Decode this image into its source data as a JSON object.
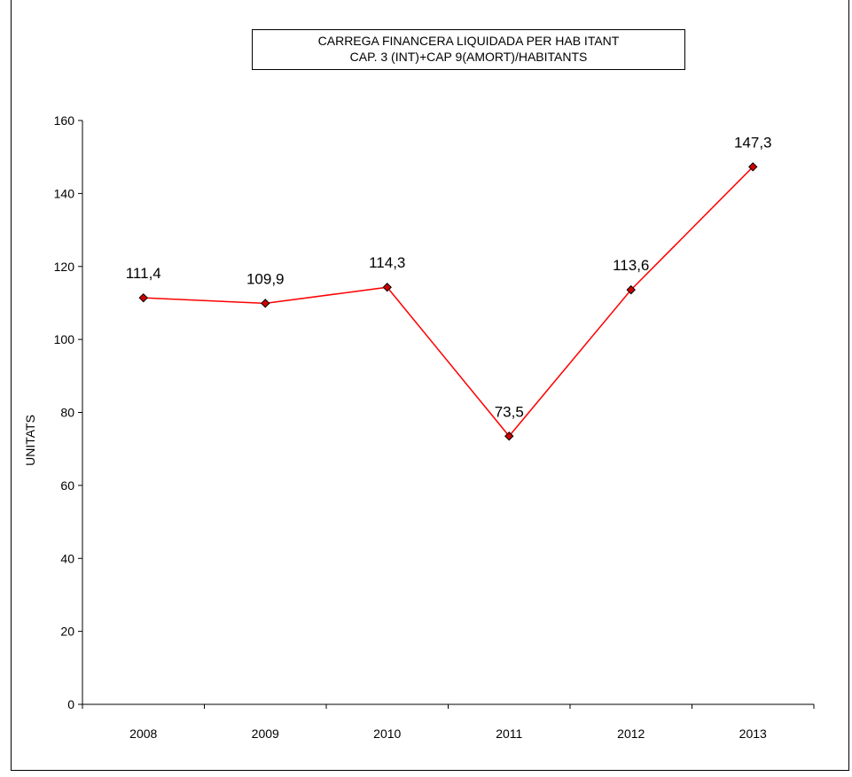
{
  "chart_data": {
    "type": "line",
    "title": "CARREGA FINANCERA LIQUIDADA PER HAB ITANT",
    "subtitle": "CAP. 3 (INT)+CAP 9(AMORT)/HABITANTS",
    "xlabel": "",
    "ylabel": "UNITATS",
    "categories": [
      "2008",
      "2009",
      "2010",
      "2011",
      "2012",
      "2013"
    ],
    "values": [
      111.4,
      109.9,
      114.3,
      73.5,
      113.6,
      147.3
    ],
    "value_labels": [
      "111,4",
      "109,9",
      "114,3",
      "73,5",
      "113,6",
      "147,3"
    ],
    "ylim": [
      0,
      160
    ],
    "yticks": [
      "0",
      "20",
      "40",
      "60",
      "80",
      "100",
      "120",
      "140",
      "160"
    ],
    "grid": false,
    "legend": "none",
    "line_color": "#ff0000",
    "marker_color": "#cc0000",
    "marker_shape": "diamond"
  }
}
